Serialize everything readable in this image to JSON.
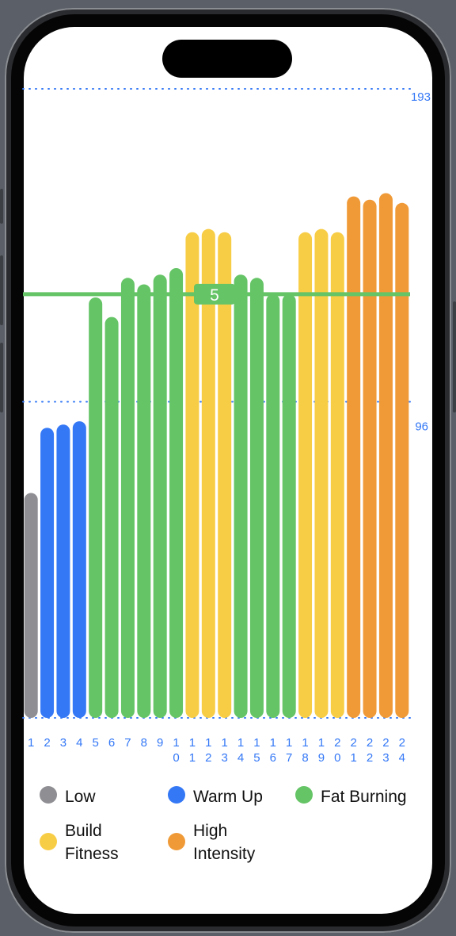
{
  "colors": {
    "low": "#8e8e93",
    "warm_up": "#3478f6",
    "fat_burning": "#65c466",
    "build_fitness": "#f8cd46",
    "high_intensity": "#f09a37",
    "axis_label": "#3478f6"
  },
  "chart_data": {
    "type": "bar",
    "title": "",
    "xlabel": "",
    "ylabel": "",
    "ylim": [
      0,
      193
    ],
    "y_grid_labels": [
      "193",
      "96"
    ],
    "categories": [
      "1",
      "2",
      "3",
      "4",
      "5",
      "6",
      "7",
      "8",
      "9",
      "10",
      "11",
      "12",
      "13",
      "14",
      "15",
      "16",
      "17",
      "18",
      "19",
      "20",
      "21",
      "22",
      "23",
      "24"
    ],
    "values": [
      69,
      89,
      90,
      91,
      129,
      123,
      135,
      133,
      136,
      138,
      149,
      150,
      149,
      136,
      135,
      130,
      130,
      149,
      150,
      149,
      160,
      159,
      161,
      158
    ],
    "zones": [
      "low",
      "warm_up",
      "warm_up",
      "warm_up",
      "fat_burning",
      "fat_burning",
      "fat_burning",
      "fat_burning",
      "fat_burning",
      "fat_burning",
      "build_fitness",
      "build_fitness",
      "build_fitness",
      "fat_burning",
      "fat_burning",
      "fat_burning",
      "fat_burning",
      "build_fitness",
      "build_fitness",
      "build_fitness",
      "high_intensity",
      "high_intensity",
      "high_intensity",
      "high_intensity"
    ],
    "rule_line": {
      "value": 130,
      "label": "5",
      "zone": "fat_burning"
    },
    "legend": [
      {
        "zone": "low",
        "label": "Low"
      },
      {
        "zone": "warm_up",
        "label": "Warm Up"
      },
      {
        "zone": "fat_burning",
        "label": "Fat Burning"
      },
      {
        "zone": "build_fitness",
        "label": "Build\nFitness"
      },
      {
        "zone": "high_intensity",
        "label": "High\nIntensity"
      }
    ]
  }
}
